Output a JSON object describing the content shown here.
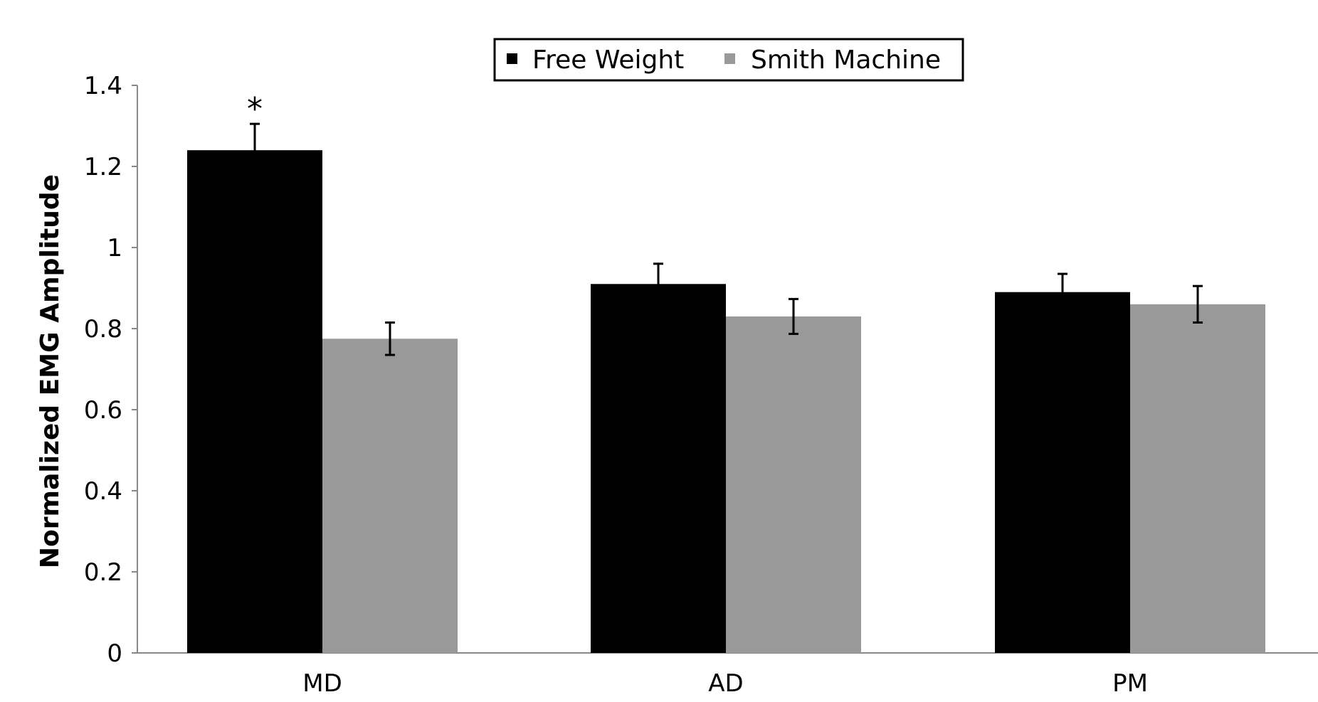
{
  "chart_data": {
    "type": "bar",
    "title": "",
    "xlabel": "",
    "ylabel": "Normalized EMG Amplitude",
    "ylim": [
      0,
      1.4
    ],
    "yticks": [
      "0",
      "0.2",
      "0.4",
      "0.6",
      "0.8",
      "1",
      "1.2",
      "1.4"
    ],
    "categories": [
      "MD",
      "AD",
      "PM"
    ],
    "series": [
      {
        "name": "Free Weight",
        "color": "#000000",
        "values": [
          1.24,
          0.91,
          0.89
        ],
        "errors": [
          0.065,
          0.05,
          0.045
        ]
      },
      {
        "name": "Smith Machine",
        "color": "#999999",
        "values": [
          0.775,
          0.83,
          0.86
        ],
        "errors": [
          0.04,
          0.043,
          0.045
        ]
      }
    ],
    "legend_position": "top-center",
    "grid": false,
    "annotations": [
      {
        "text": "*",
        "category": "MD",
        "series": "Free Weight"
      }
    ]
  }
}
